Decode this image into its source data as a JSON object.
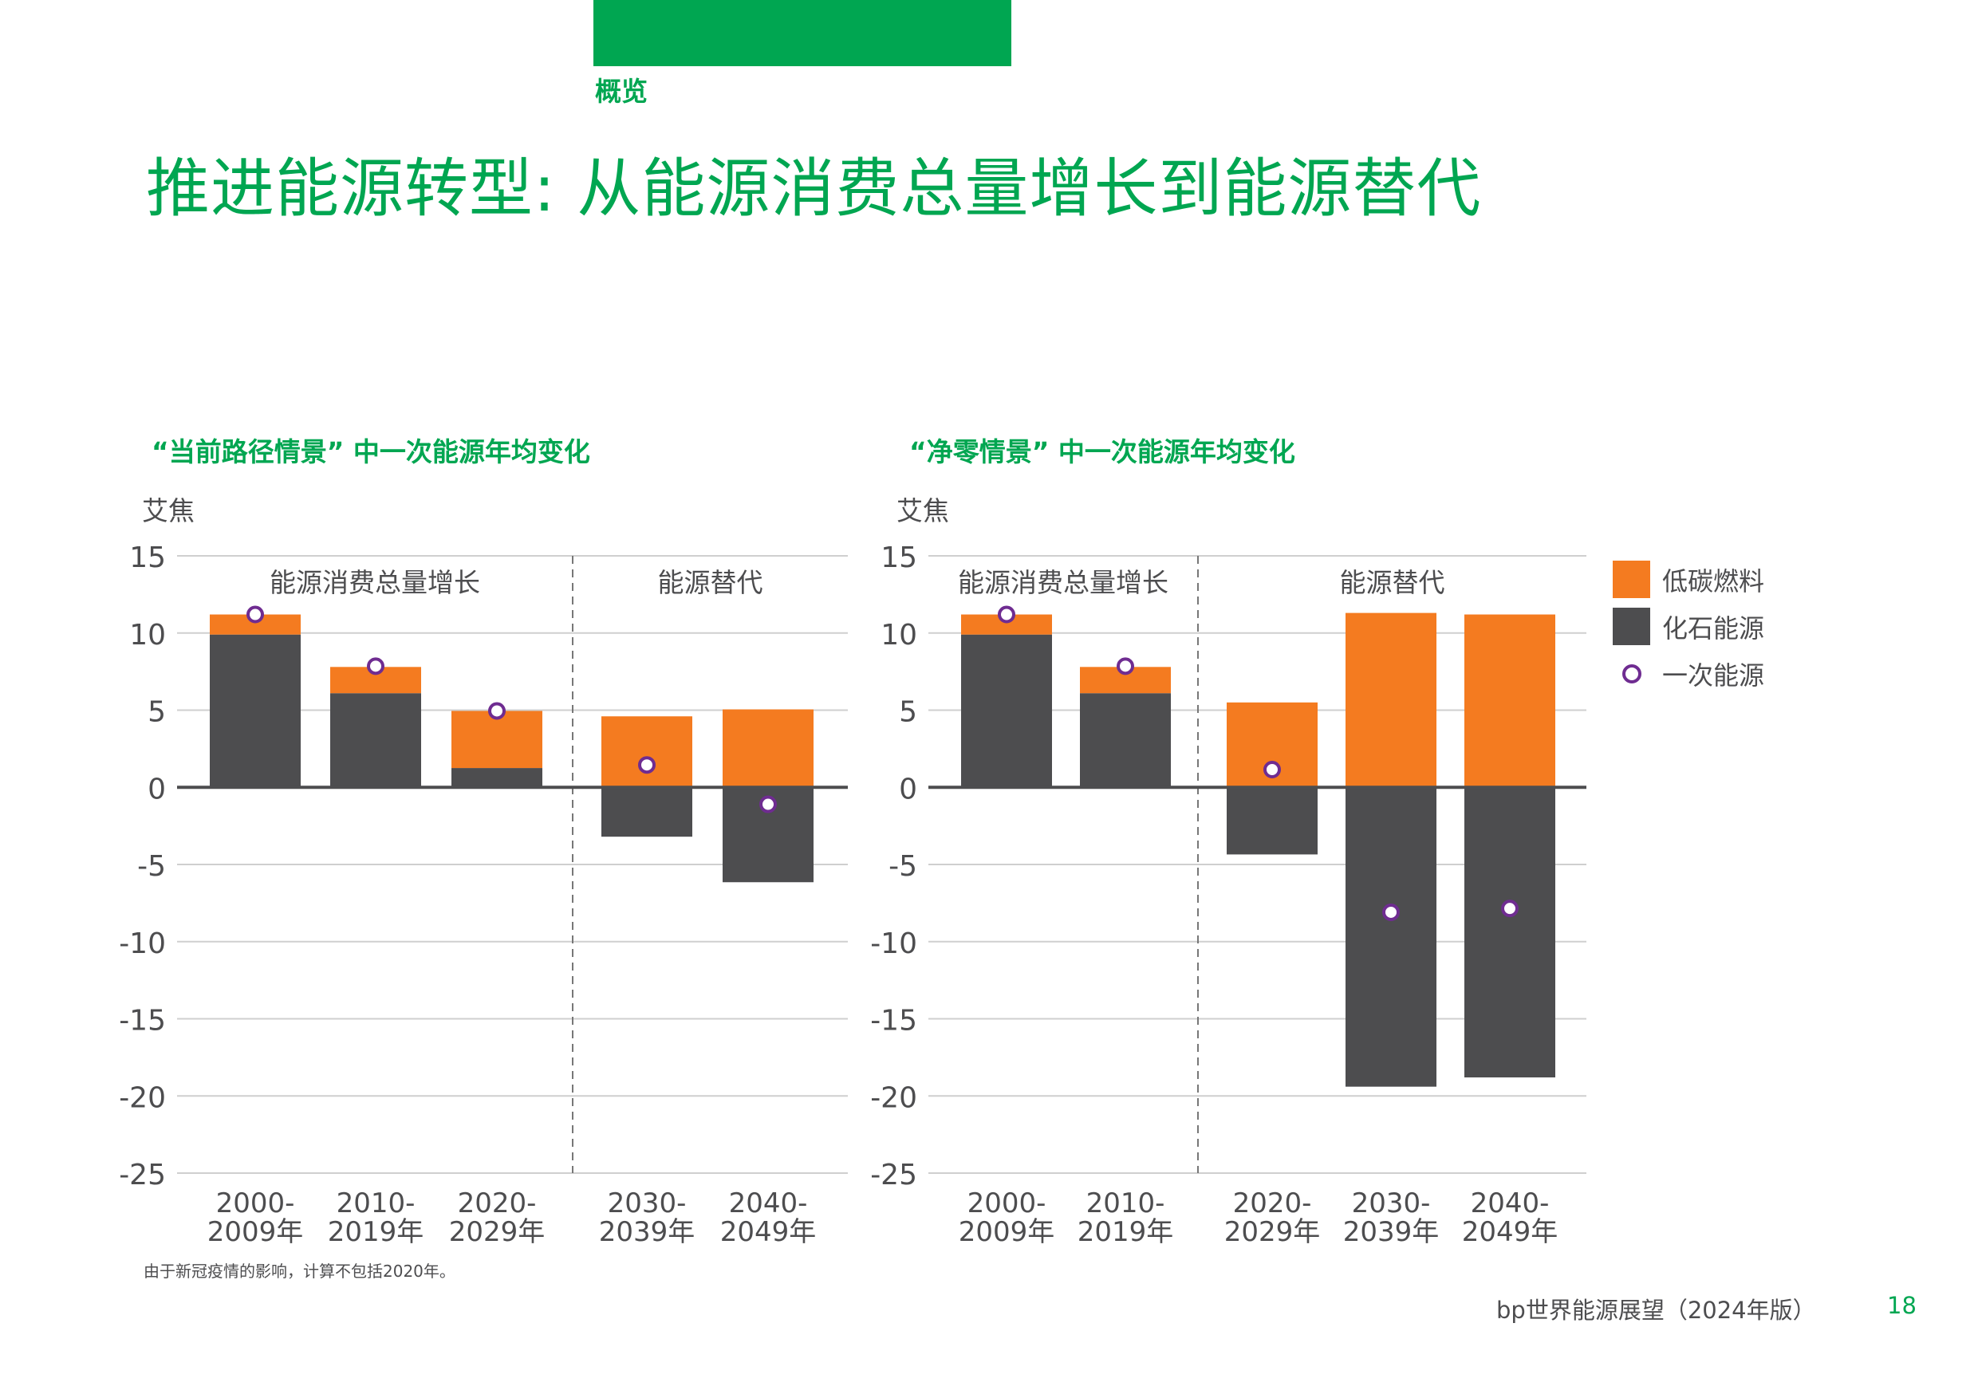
{
  "header": {
    "section_tag": "概览",
    "title": "推进能源转型: 从能源消费总量增长到能源替代"
  },
  "colors": {
    "brand_green": "#00a651",
    "low_carbon": "#f47b20",
    "fossil": "#4d4d4f",
    "primary_energy": "#6f2c91"
  },
  "legend": {
    "items": [
      {
        "label": "低碳燃料",
        "key": "low_carbon"
      },
      {
        "label": "化石能源",
        "key": "fossil"
      },
      {
        "label": "一次能源",
        "key": "primary_energy"
      }
    ]
  },
  "chart_data": [
    {
      "type": "bar",
      "stacked": true,
      "title": "“当前路径情景” 中一次能源年均变化",
      "ylabel": "艾焦",
      "xlabel": "",
      "ylim": [
        -25,
        15
      ],
      "yticks": [
        15,
        10,
        5,
        0,
        -5,
        -10,
        -15,
        -20,
        -25
      ],
      "grid": true,
      "sections": [
        {
          "label": "能源消费总量增长",
          "categories": [
            0,
            1,
            2
          ]
        },
        {
          "label": "能源替代",
          "categories": [
            3,
            4
          ]
        }
      ],
      "categories": [
        [
          "2000-",
          "2009年"
        ],
        [
          "2010-",
          "2019年"
        ],
        [
          "2020-",
          "2029年"
        ],
        [
          "2030-",
          "2039年"
        ],
        [
          "2040-",
          "2049年"
        ]
      ],
      "series": [
        {
          "name": "化石能源",
          "values": [
            9.9,
            6.1,
            1.25,
            -3.2,
            -6.15
          ]
        },
        {
          "name": "低碳燃料",
          "values": [
            1.3,
            1.7,
            3.7,
            4.6,
            5.05
          ]
        },
        {
          "name": "一次能源",
          "kind": "marker",
          "values": [
            11.2,
            7.85,
            4.95,
            1.45,
            -1.1
          ]
        }
      ]
    },
    {
      "type": "bar",
      "stacked": true,
      "title": "“净零情景” 中一次能源年均变化",
      "ylabel": "艾焦",
      "xlabel": "",
      "ylim": [
        -25,
        15
      ],
      "yticks": [
        15,
        10,
        5,
        0,
        -5,
        -10,
        -15,
        -20,
        -25
      ],
      "grid": true,
      "legend": "right",
      "sections": [
        {
          "label": "能源消费总量增长",
          "categories": [
            0,
            1
          ]
        },
        {
          "label": "能源替代",
          "categories": [
            2,
            3,
            4
          ]
        }
      ],
      "categories": [
        [
          "2000-",
          "2009年"
        ],
        [
          "2010-",
          "2019年"
        ],
        [
          "2020-",
          "2029年"
        ],
        [
          "2030-",
          "2039年"
        ],
        [
          "2040-",
          "2049年"
        ]
      ],
      "series": [
        {
          "name": "化石能源",
          "values": [
            9.9,
            6.1,
            -4.35,
            -19.4,
            -18.8
          ]
        },
        {
          "name": "低碳燃料",
          "values": [
            1.3,
            1.7,
            5.5,
            11.3,
            11.2
          ]
        },
        {
          "name": "一次能源",
          "kind": "marker",
          "values": [
            11.2,
            7.85,
            1.15,
            -8.1,
            -7.85
          ]
        }
      ]
    }
  ],
  "footnote": "由于新冠疫情的影响，计算不包括2020年。",
  "footer": {
    "brand": "bp世界能源展望（2024年版）",
    "page_number": "18"
  }
}
